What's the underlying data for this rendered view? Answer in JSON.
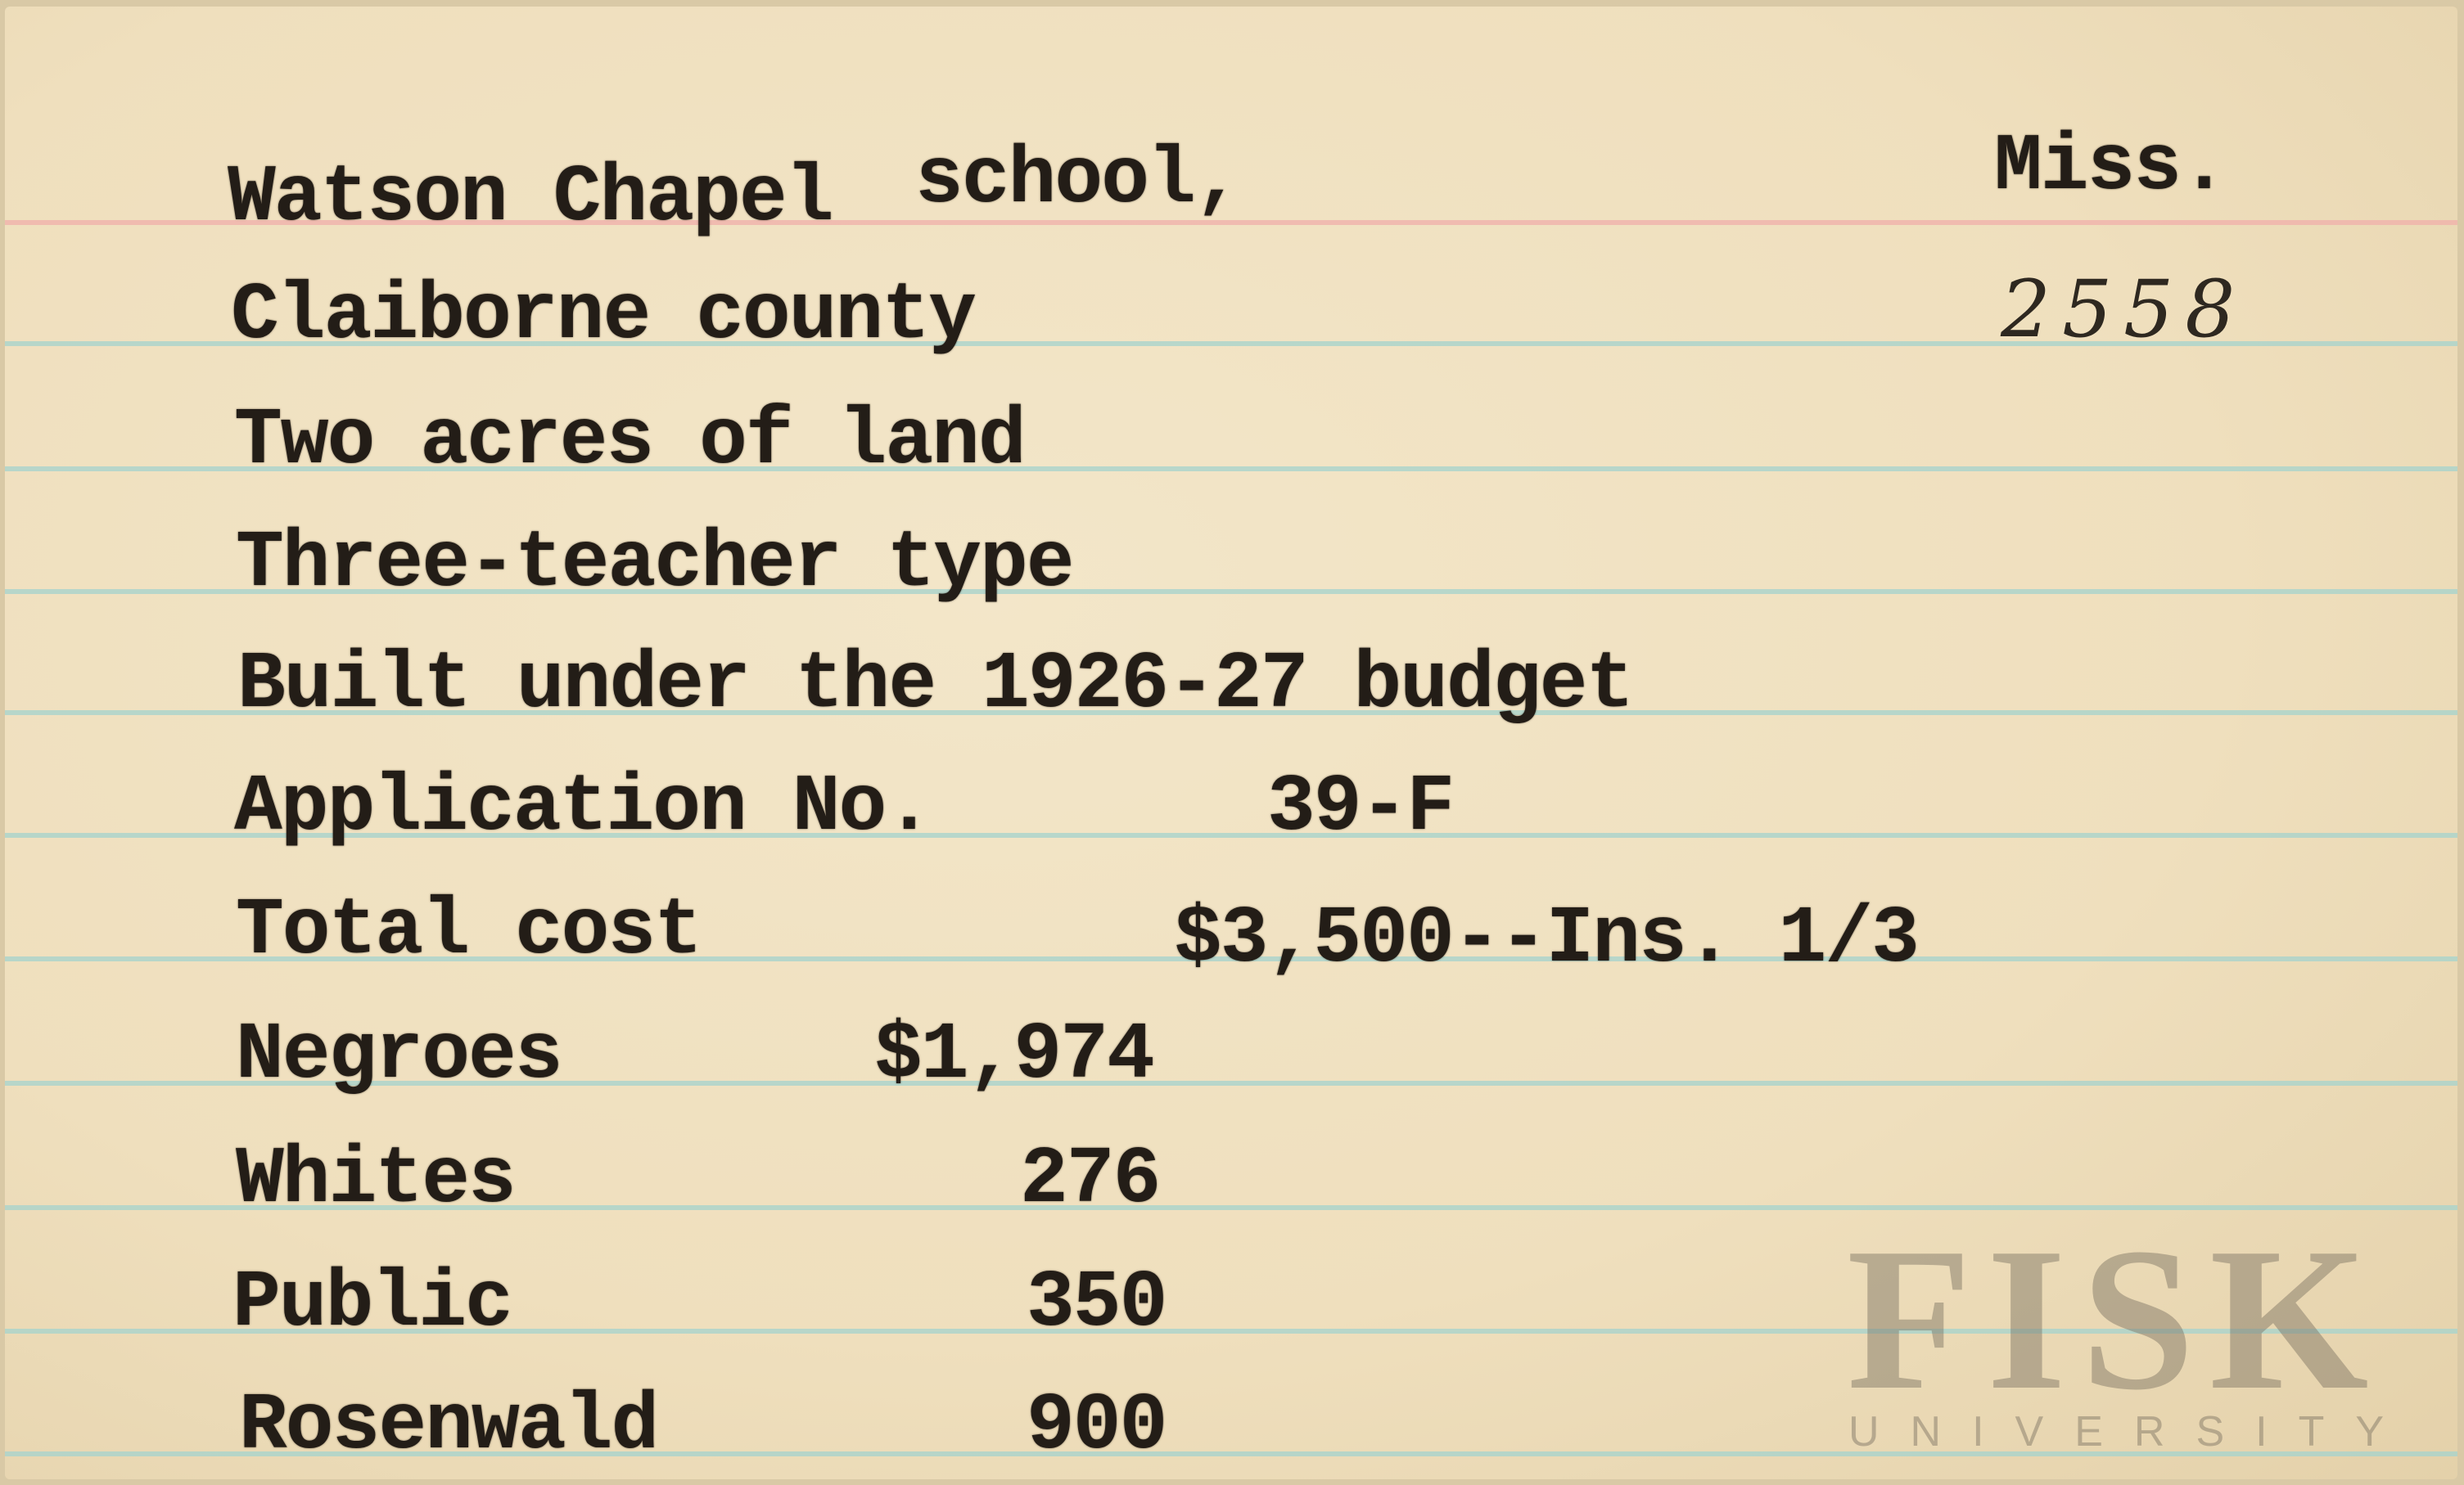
{
  "card": {
    "school": "Watson Chapel",
    "school_suffix": "school,",
    "state": "Miss.",
    "catalog_number": "2558",
    "county": "Claiborne county",
    "land": "Two acres of land",
    "type": "Three-teacher type",
    "budget": "Built under the 1926-27 budget",
    "application_label": "Application No.",
    "application_value": "39-F",
    "total_cost_label": "Total cost",
    "total_cost_value": "$3,500--Ins. 1/3",
    "contributions": [
      {
        "label": "Negroes",
        "value": "$1,974"
      },
      {
        "label": "Whites",
        "value": "276"
      },
      {
        "label": "Public",
        "value": "350"
      },
      {
        "label": "Rosenwald",
        "value": "900"
      }
    ]
  },
  "watermark": {
    "name": "FISK",
    "subtitle": "UNIVERSITY"
  },
  "colors": {
    "paper": "#efdfbd",
    "blue_rule": "#a9d3cc",
    "red_rule": "#f0b2ab",
    "ink": "#231d17"
  }
}
